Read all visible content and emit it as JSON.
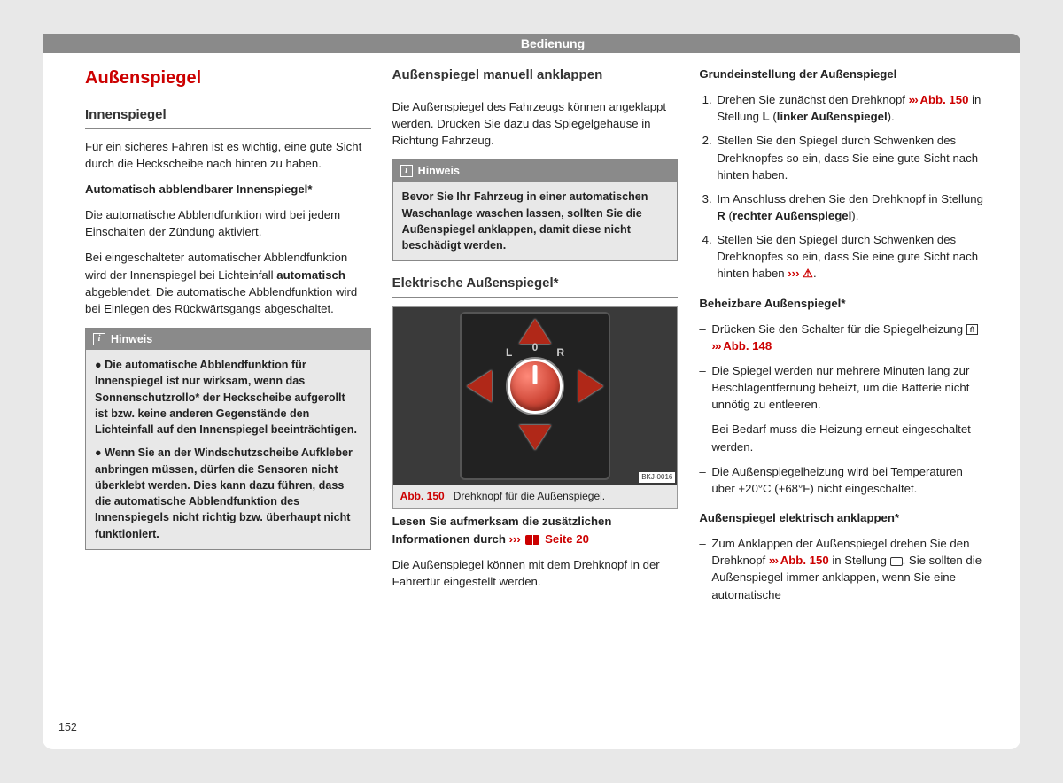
{
  "header": "Bedienung",
  "pageNumber": "152",
  "col1": {
    "title": "Außenspiegel",
    "h_innen": "Innenspiegel",
    "p1": "Für ein sicheres Fahren ist es wichtig, eine gute Sicht durch die Heckscheibe nach hinten zu haben.",
    "h_auto": "Automatisch abblendbarer Innenspiegel*",
    "p2": "Die automatische Abblendfunktion wird bei jedem Einschalten der Zündung aktiviert.",
    "p3a": "Bei eingeschalteter automatischer Abblendfunktion wird der Innenspiegel bei Lichteinfall ",
    "p3bold": "automatisch",
    "p3b": " abgeblendet. Die automatische Abblendfunktion wird bei Einlegen des Rückwärtsgangs abgeschaltet.",
    "hinweis_label": "Hinweis",
    "hw1": "Die automatische Abblendfunktion für Innenspiegel ist nur wirksam, wenn das Sonnenschutzrollo* der Heckscheibe aufgerollt ist bzw. keine anderen Gegenstände den Lichteinfall auf den Innenspiegel beeinträchtigen.",
    "hw2": "Wenn Sie an der Windschutzscheibe Aufkleber anbringen müssen, dürfen die Sensoren nicht überklebt werden. Dies kann dazu führen, dass die automatische Abblendfunktion des Innenspiegels nicht richtig bzw. überhaupt nicht funktioniert."
  },
  "col2": {
    "h_manuell": "Außenspiegel manuell anklappen",
    "p1": "Die Außenspiegel des Fahrzeugs können angeklappt werden. Drücken Sie dazu das Spiegelgehäuse in Richtung Fahrzeug.",
    "hinweis_label": "Hinweis",
    "hw1": "Bevor Sie Ihr Fahrzeug in einer automatischen Waschanlage waschen lassen, sollten Sie die Außenspiegel anklappen, damit diese nicht beschädigt werden.",
    "h_elek": "Elektrische Außenspiegel*",
    "fig_abb": "Abb. 150",
    "fig_caption": "Drehknopf für die Außenspiegel.",
    "fig_code": "BKJ-0016",
    "knob_L": "L",
    "knob_0": "0",
    "knob_R": "R",
    "p2a": "Lesen Sie aufmerksam die zusätzlichen Informationen durch",
    "p2ref": "Seite 20",
    "p3": "Die Außenspiegel können mit dem Drehknopf in der Fahrertür eingestellt werden."
  },
  "col3": {
    "h_grund": "Grundeinstellung der Außenspiegel",
    "s1a": "Drehen Sie zunächst den Drehknopf ",
    "s1ref": "Abb. 150",
    "s1b": " in Stellung ",
    "s1L": "L",
    "s1c": " (",
    "s1d": "linker Außenspiegel",
    "s1e": ").",
    "s2": "Stellen Sie den Spiegel durch Schwenken des Drehknopfes so ein, dass Sie eine gute Sicht nach hinten haben.",
    "s3a": "Im Anschluss drehen Sie den Drehknopf in Stellung ",
    "s3R": "R",
    "s3b": " (",
    "s3c": "rechter Außenspiegel",
    "s3d": ").",
    "s4a": "Stellen Sie den Spiegel durch Schwenken des Drehknopfes so ein, dass Sie eine gute Sicht nach hinten haben ",
    "h_heiz": "Beheizbare Außenspiegel*",
    "d1a": "Drücken Sie den Schalter für die Spiegelheizung ",
    "d1ref": "Abb. 148",
    "d2": "Die Spiegel werden nur mehrere Minuten lang zur Beschlagentfernung beheizt, um die Batterie nicht unnötig zu entleeren.",
    "d3": "Bei Bedarf muss die Heizung erneut eingeschaltet werden.",
    "d4": "Die Außenspiegelheizung wird bei Temperaturen über +20°C (+68°F) nicht eingeschaltet.",
    "h_eank": "Außenspiegel elektrisch anklappen*",
    "e1a": "Zum Anklappen der Außenspiegel drehen Sie den Drehknopf ",
    "e1ref": "Abb. 150",
    "e1b": " in Stellung ",
    "e1c": ". Sie sollten die Außenspiegel immer anklappen, wenn Sie eine automatische"
  }
}
